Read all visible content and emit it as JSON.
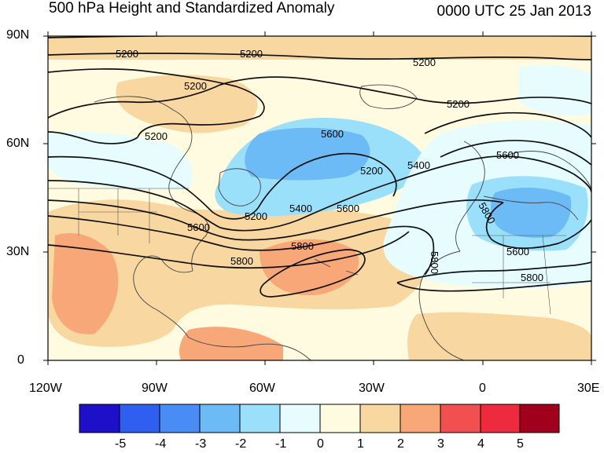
{
  "header": {
    "title_left": "500 hPa Height and Standardized Anomaly",
    "title_right": "0000 UTC 25 Jan 2013"
  },
  "axes": {
    "lat_ticks": [
      "90N",
      "60N",
      "30N",
      "0"
    ],
    "lon_ticks": [
      "120W",
      "90W",
      "60W",
      "30W",
      "0",
      "30E"
    ]
  },
  "contours": {
    "labels": [
      "5200",
      "5200",
      "5200",
      "5200",
      "5200",
      "5200",
      "5200",
      "5200",
      "5400",
      "5400",
      "5600",
      "5600",
      "5600",
      "5600",
      "5600",
      "5800",
      "5800",
      "5800",
      "5800",
      "5800"
    ]
  },
  "colorbar": {
    "labels": [
      "-5",
      "-4",
      "-3",
      "-2",
      "-1",
      "0",
      "1",
      "2",
      "3",
      "4",
      "5"
    ],
    "colors": [
      "#1d10c8",
      "#2f5ff0",
      "#4a8cf5",
      "#6cbaf6",
      "#9be0fa",
      "#e6fcff",
      "#fffbe0",
      "#f8d7a0",
      "#f8a878",
      "#f25050",
      "#ed2a3e",
      "#a0001c"
    ]
  }
}
